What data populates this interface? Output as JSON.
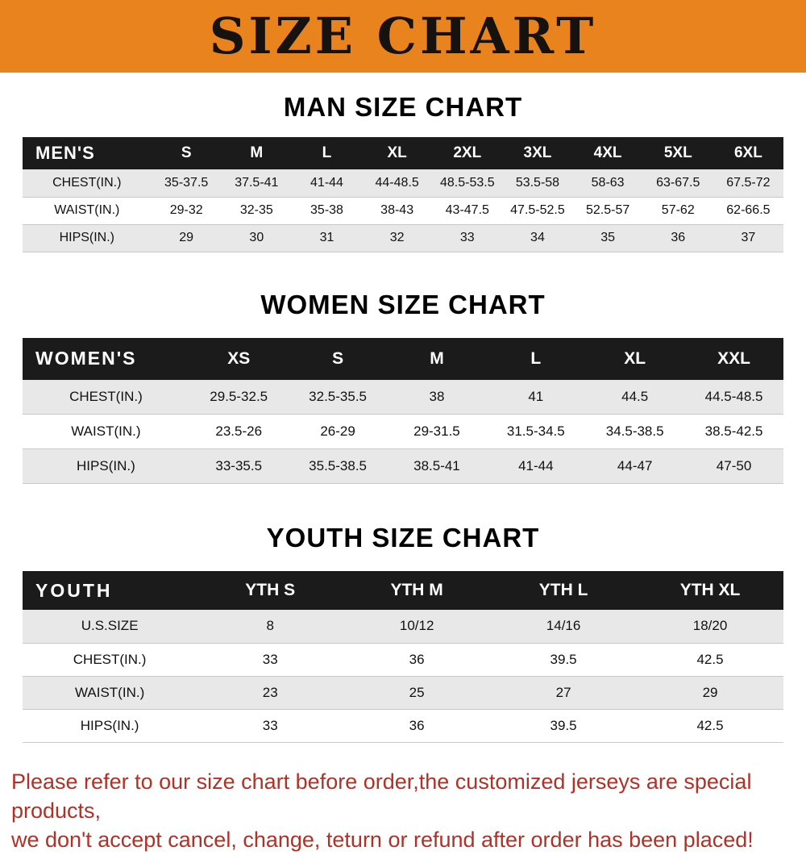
{
  "colors": {
    "banner_orange": "#E8831D",
    "table_header_black": "#1b1b1b",
    "row_stripe_gray": "#e8e8e8",
    "footer_red": "#b13127"
  },
  "banner": {
    "title": "SIZE CHART"
  },
  "sections": [
    {
      "heading": "MAN SIZE CHART",
      "table": {
        "header": [
          "MEN'S",
          "S",
          "M",
          "L",
          "XL",
          "2XL",
          "3XL",
          "4XL",
          "5XL",
          "6XL"
        ],
        "rows": [
          [
            "CHEST(IN.)",
            "35-37.5",
            "37.5-41",
            "41-44",
            "44-48.5",
            "48.5-53.5",
            "53.5-58",
            "58-63",
            "63-67.5",
            "67.5-72"
          ],
          [
            "WAIST(IN.)",
            "29-32",
            "32-35",
            "35-38",
            "38-43",
            "43-47.5",
            "47.5-52.5",
            "52.5-57",
            "57-62",
            "62-66.5"
          ],
          [
            "HIPS(IN.)",
            "29",
            "30",
            "31",
            "32",
            "33",
            "34",
            "35",
            "36",
            "37"
          ]
        ]
      }
    },
    {
      "heading": "WOMEN SIZE CHART",
      "table": {
        "header": [
          "WOMEN'S",
          "XS",
          "S",
          "M",
          "L",
          "XL",
          "XXL"
        ],
        "rows": [
          [
            "CHEST(IN.)",
            "29.5-32.5",
            "32.5-35.5",
            "38",
            "41",
            "44.5",
            "44.5-48.5"
          ],
          [
            "WAIST(IN.)",
            "23.5-26",
            "26-29",
            "29-31.5",
            "31.5-34.5",
            "34.5-38.5",
            "38.5-42.5"
          ],
          [
            "HIPS(IN.)",
            "33-35.5",
            "35.5-38.5",
            "38.5-41",
            "41-44",
            "44-47",
            "47-50"
          ]
        ]
      }
    },
    {
      "heading": "YOUTH SIZE CHART",
      "table": {
        "header": [
          "YOUTH",
          "YTH S",
          "YTH M",
          "YTH L",
          "YTH XL"
        ],
        "rows": [
          [
            "U.S.SIZE",
            "8",
            "10/12",
            "14/16",
            "18/20"
          ],
          [
            "CHEST(IN.)",
            "33",
            "36",
            "39.5",
            "42.5"
          ],
          [
            "WAIST(IN.)",
            "23",
            "25",
            "27",
            "29"
          ],
          [
            "HIPS(IN.)",
            "33",
            "36",
            "39.5",
            "42.5"
          ]
        ]
      }
    }
  ],
  "footer": {
    "lines": [
      "Please refer to our size chart before order,the customized jerseys are special products,",
      "we don't accept cancel, change, teturn or refund after order has been placed!"
    ]
  }
}
